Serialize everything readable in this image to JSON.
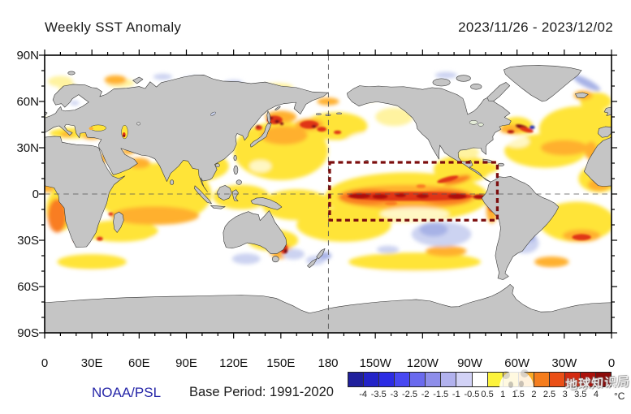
{
  "header": {
    "title": "Weekly SST Anomaly",
    "date_range": "2023/11/26 - 2023/12/02"
  },
  "axes": {
    "lat_labels": [
      "90N",
      "60N",
      "30N",
      "0",
      "30S",
      "60S",
      "90S"
    ],
    "lon_labels": [
      "0",
      "30E",
      "60E",
      "90E",
      "120E",
      "150E",
      "180",
      "150W",
      "120W",
      "90W",
      "60W",
      "30W",
      "0"
    ]
  },
  "footer": {
    "source": "NOAA/PSL",
    "base_period": "Base Period: 1991-2020"
  },
  "colorbar": {
    "unit": "°C",
    "tick_labels": [
      "-4",
      "-3.5",
      "-3",
      "-2.5",
      "-2",
      "-1.5",
      "-1",
      "-0.5",
      "0.5",
      "1",
      "1.5",
      "2",
      "2.5",
      "3",
      "3.5",
      "4"
    ],
    "colors": [
      "#20209c",
      "#2424c8",
      "#2c2ce4",
      "#4848f2",
      "#6a6aee",
      "#8e8eea",
      "#b2b2ee",
      "#d2d2f6",
      "#ffffff",
      "#fcf33c",
      "#fcd62e",
      "#fcaa24",
      "#f57d1d",
      "#ea4f16",
      "#d42a10",
      "#ad120c",
      "#8c0b0a"
    ]
  },
  "watermark": {
    "text": "地球知识局"
  },
  "map": {
    "colors": {
      "land": "#c5c5c5",
      "coast": "#333333",
      "ocean": "#ffffff",
      "grid": "#555555",
      "nino-box": "#7c0e0e"
    },
    "palette": {
      "y1": "#ffe438",
      "y2": "#fff3a0",
      "o1": "#ffb02e",
      "o2": "#f97d20",
      "r1": "#e03414",
      "r2": "#ad100e",
      "m": "#7d0a12",
      "b1": "#ccd3f1",
      "b2": "#a7b2e6",
      "n": "#2838b8",
      "w": "#ffffff"
    }
  },
  "chart_data": {
    "type": "heatmap",
    "title": "Weekly SST Anomaly",
    "period": "2023/11/26 - 2023/12/02",
    "base_period": "1991-2020",
    "source": "NOAA/PSL",
    "units": "°C",
    "projection": "equirectangular, longitude 0→360 (Pacific-centered at 180), latitude 90N→90S",
    "lat_ticks": [
      "90N",
      "60N",
      "30N",
      "0",
      "30S",
      "60S",
      "90S"
    ],
    "lon_ticks": [
      "0",
      "30E",
      "60E",
      "90E",
      "120E",
      "150E",
      "180",
      "150W",
      "120W",
      "90W",
      "60W",
      "30W",
      "0"
    ],
    "colorbar_breakpoints": [
      -4,
      -3.5,
      -3,
      -2.5,
      -2,
      -1.5,
      -1,
      -0.5,
      0.5,
      1,
      1.5,
      2,
      2.5,
      3,
      3.5,
      4
    ],
    "highlight_box": {
      "style": "dark-red dashed rectangle (El Niño monitoring region)",
      "lon_range_label": "≈180 to 73W",
      "lat_range_label": "≈20N to 17S"
    },
    "grid": "dashed lines at equator and 180° meridian",
    "legend_position": "bottom-right horizontal colorbar",
    "features": [
      {
        "region": "Equatorial central/east Pacific tongue (inside dashed box)",
        "anomaly_c": "+2 to +4"
      },
      {
        "region": "Northwest Pacific / Kuroshio east of Japan",
        "anomaly_c": "+2 to +4 spots"
      },
      {
        "region": "North Atlantic 10–40N",
        "anomaly_c": "+0.5 to +2"
      },
      {
        "region": "Gulf Stream ~43N 50W",
        "anomaly_c": "mixed -3 to +3 eddies"
      },
      {
        "region": "Indian Ocean basin-wide",
        "anomaly_c": "+0.5 to +2"
      },
      {
        "region": "Benguela upwelling off SW Africa",
        "anomaly_c": "+2 to +3"
      },
      {
        "region": "Tasman Sea off SE Australia",
        "anomaly_c": "+3 to +4 spot"
      },
      {
        "region": "Southeast Pacific 25–45S",
        "anomaly_c": "-0.5 to -1.5"
      },
      {
        "region": "Southwest Atlantic off Argentina",
        "anomaly_c": "-0.5 to -1.5"
      },
      {
        "region": "Southern Ocean 50–65S",
        "anomaly_c": "near 0 (white)"
      },
      {
        "region": "Caspian Sea",
        "anomaly_c": "+1 with +3 spot"
      }
    ]
  }
}
